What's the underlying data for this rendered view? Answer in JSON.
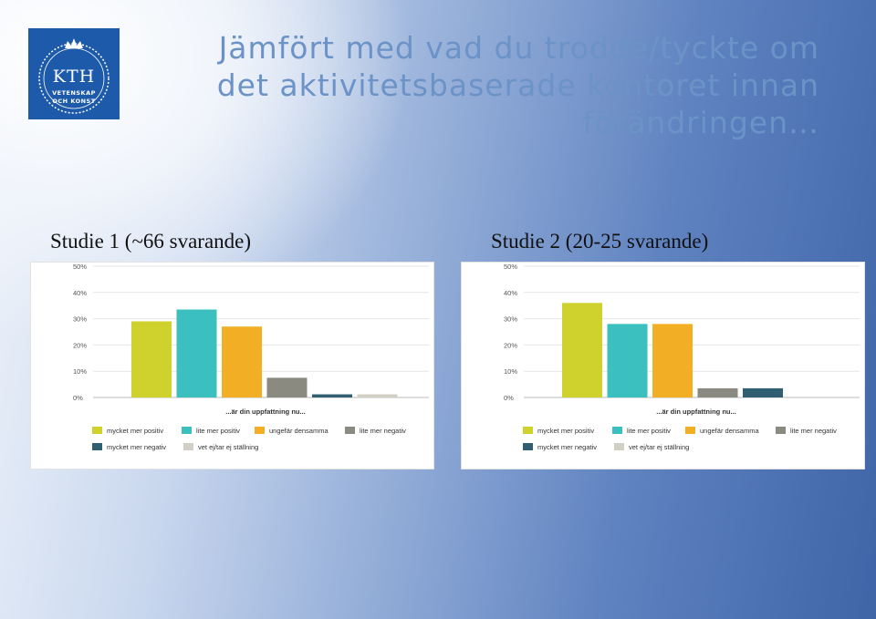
{
  "logo": {
    "name": "KTH",
    "line1": "VETENSKAP",
    "line2": "OCH KONST"
  },
  "title": "Jämfört med vad du trodde/tyckte om det aktivitetsbaserade kontoret innan förändringen…",
  "studies": [
    {
      "label": "Studie 1  (~66 svarande)"
    },
    {
      "label": "Studie 2  (20-25 svarande)"
    }
  ],
  "chart_data": [
    {
      "type": "bar",
      "xlabel": "...är din uppfattning nu...",
      "ylim": [
        0,
        50
      ],
      "yticks": [
        "0%",
        "10%",
        "20%",
        "30%",
        "40%",
        "50%"
      ],
      "categories": [
        "mycket mer positiv",
        "lite mer positiv",
        "ungefär densamma",
        "lite mer negativ",
        "mycket mer negativ",
        "vet ej/tar ej ställning"
      ],
      "colors": [
        "#cfd22c",
        "#3bbfbf",
        "#f2ae24",
        "#8a8a80",
        "#2f5f70",
        "#d2d0c4"
      ],
      "values": [
        29,
        33.5,
        27,
        7.5,
        1.2,
        1.2
      ],
      "grid": true,
      "legend": "bottom"
    },
    {
      "type": "bar",
      "xlabel": "...är din uppfattning nu...",
      "ylim": [
        0,
        50
      ],
      "yticks": [
        "0%",
        "10%",
        "20%",
        "30%",
        "40%",
        "50%"
      ],
      "categories": [
        "mycket mer positiv",
        "lite mer positiv",
        "ungefär densamma",
        "lite mer negativ",
        "mycket mer negativ",
        "vet ej/tar ej ställning"
      ],
      "colors": [
        "#cfd22c",
        "#3bbfbf",
        "#f2ae24",
        "#8a8a80",
        "#2f5f70",
        "#d2d0c4"
      ],
      "values": [
        36,
        28,
        28,
        3.5,
        3.5,
        0
      ],
      "grid": true,
      "legend": "bottom"
    }
  ]
}
